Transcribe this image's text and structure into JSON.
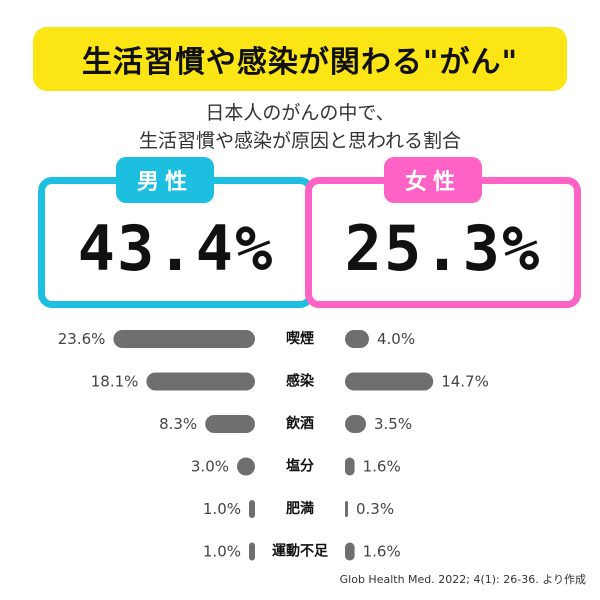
{
  "title": "生活習慣や感染が関わる\"がん\"",
  "subtitle_lines": [
    "日本人のがんの中で、",
    "生活習慣や感染が原因と思われる割合"
  ],
  "male": {
    "label": "男性",
    "total": "43.4%"
  },
  "female": {
    "label": "女性",
    "total": "25.3%"
  },
  "colors": {
    "male": "#1dbfe0",
    "female": "#ff62c5",
    "title_bg": "#fce515",
    "bar": "#6f6f6f"
  },
  "source": "Glob Health Med. 2022; 4(1): 26-36. より作成",
  "chart_data": {
    "type": "bar",
    "categories": [
      "喫煙",
      "感染",
      "飲酒",
      "塩分",
      "肥満",
      "運動不足"
    ],
    "series": [
      {
        "name": "男性",
        "values": [
          23.6,
          18.1,
          8.3,
          3.0,
          1.0,
          1.0
        ]
      },
      {
        "name": "女性",
        "values": [
          4.0,
          14.7,
          3.5,
          1.6,
          0.3,
          1.6
        ]
      }
    ],
    "unit": "%"
  }
}
